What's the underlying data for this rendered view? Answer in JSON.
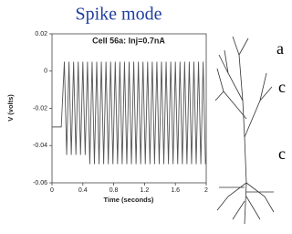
{
  "header": {
    "title": "Spike mode"
  },
  "side_text": [
    "a",
    "c",
    "c"
  ],
  "chart_data": {
    "type": "line",
    "title": "Cell 56a: Inj=0.7nA",
    "x_label": "Time (seconds)",
    "y_label": "V (volts)",
    "xlim": [
      0,
      2
    ],
    "xticks": [
      0,
      0.4,
      0.8,
      1.2,
      1.6,
      2
    ],
    "ylim": [
      -0.06,
      0.02
    ],
    "yticks": [
      0.02,
      0,
      -0.02,
      -0.04,
      -0.06
    ],
    "grid": false,
    "series": [
      {
        "color": "#555555",
        "x": [
          0,
          0.12,
          0.16,
          0.19,
          0.22,
          0.25,
          0.28,
          0.31,
          0.34,
          0.37,
          0.4,
          0.43,
          0.46,
          0.49,
          0.52,
          0.55,
          0.58,
          0.61,
          0.64,
          0.67,
          0.7,
          0.73,
          0.76,
          0.79,
          0.82,
          0.85,
          0.88,
          0.91,
          0.94,
          0.97,
          1.0,
          1.03,
          1.06,
          1.09,
          1.12,
          1.15,
          1.18,
          1.21,
          1.24,
          1.27,
          1.3,
          1.33,
          1.36,
          1.39,
          1.42,
          1.45,
          1.48,
          1.51,
          1.54,
          1.57,
          1.6,
          1.63,
          1.66,
          1.69,
          1.72,
          1.75,
          1.78,
          1.81,
          1.84,
          1.87,
          1.9,
          1.93,
          1.96,
          1.99
        ],
        "values": [
          -0.03,
          -0.03,
          0.005,
          -0.045,
          0.005,
          -0.045,
          0.005,
          -0.045,
          0.005,
          -0.045,
          0.005,
          -0.045,
          0.005,
          -0.05,
          0.005,
          -0.05,
          0.005,
          -0.05,
          0.005,
          -0.05,
          0.005,
          -0.05,
          0.005,
          -0.05,
          0.005,
          -0.05,
          0.005,
          -0.05,
          0.005,
          -0.05,
          0.005,
          -0.05,
          0.005,
          -0.05,
          0.005,
          -0.05,
          0.005,
          -0.05,
          0.005,
          -0.05,
          0.005,
          -0.05,
          0.005,
          -0.05,
          0.005,
          -0.05,
          0.005,
          -0.05,
          0.005,
          -0.05,
          0.005,
          -0.05,
          0.005,
          -0.05,
          0.005,
          -0.05,
          0.005,
          -0.05,
          0.005,
          -0.05,
          0.005,
          -0.05,
          0.005,
          -0.05
        ]
      }
    ]
  }
}
